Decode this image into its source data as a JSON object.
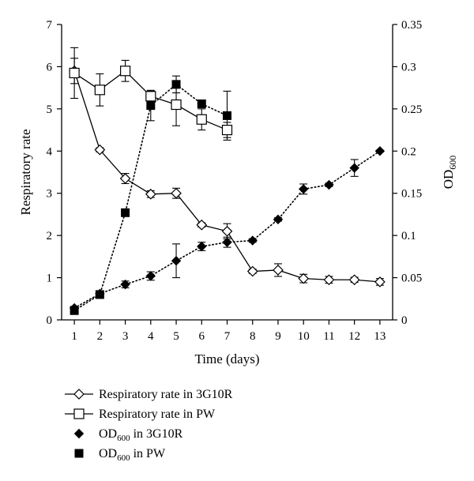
{
  "chart_data": {
    "type": "line",
    "xlabel": "Time (days)",
    "ylabel_left": "Respiratory rate",
    "ylabel_right": {
      "base": "OD",
      "sub": "600"
    },
    "x_ticks": [
      1,
      2,
      3,
      4,
      5,
      6,
      7,
      8,
      9,
      10,
      11,
      12,
      13
    ],
    "xlim": [
      0.5,
      13.5
    ],
    "ylim_left": [
      0,
      7
    ],
    "yticks_left": [
      0,
      1,
      2,
      3,
      4,
      5,
      6,
      7
    ],
    "ylim_right": [
      0,
      0.35
    ],
    "yticks_right": [
      "0",
      "0.05",
      "0.1",
      "0.15",
      "0.2",
      "0.25",
      "0.3",
      "0.35"
    ],
    "grid": false,
    "legend_position": "bottom",
    "series": [
      {
        "name": "Respiratory rate in 3G10R",
        "axis": "left",
        "marker": "open-diamond",
        "line": "solid",
        "x": [
          1,
          2,
          3,
          4,
          5,
          6,
          7,
          8,
          9,
          10,
          11,
          12,
          13
        ],
        "y": [
          5.9,
          4.03,
          3.35,
          2.98,
          3.0,
          2.25,
          2.1,
          1.15,
          1.18,
          0.98,
          0.95,
          0.95,
          0.9
        ],
        "err": [
          0.3,
          0.05,
          0.12,
          0.08,
          0.12,
          0.05,
          0.18,
          0.05,
          0.15,
          0.1,
          0.08,
          0.06,
          0.08
        ]
      },
      {
        "name": "Respiratory rate in PW",
        "axis": "left",
        "marker": "open-square",
        "line": "solid",
        "x": [
          1,
          2,
          3,
          4,
          5,
          6,
          7
        ],
        "y": [
          5.85,
          5.45,
          5.9,
          5.3,
          5.1,
          4.75,
          4.5
        ],
        "err": [
          0.6,
          0.38,
          0.25,
          0.12,
          0.5,
          0.25,
          0.18
        ]
      },
      {
        "name": "OD600 in 3G10R",
        "axis": "right",
        "marker": "filled-diamond",
        "line": "dotted",
        "x": [
          1,
          2,
          3,
          4,
          5,
          6,
          7,
          8,
          9,
          10,
          11,
          12,
          13
        ],
        "y": [
          0.014,
          0.031,
          0.042,
          0.052,
          0.07,
          0.087,
          0.092,
          0.094,
          0.119,
          0.155,
          0.16,
          0.18,
          0.2
        ],
        "err": [
          0.002,
          0.002,
          0.004,
          0.005,
          0.02,
          0.005,
          0.006,
          0.002,
          0.002,
          0.006,
          0.002,
          0.01,
          0.001
        ]
      },
      {
        "name": "OD600 in PW",
        "axis": "right",
        "marker": "filled-square",
        "line": "dotted",
        "x": [
          1,
          2,
          3,
          4,
          5,
          6,
          7
        ],
        "y": [
          0.011,
          0.03,
          0.127,
          0.254,
          0.279,
          0.256,
          0.242
        ],
        "err": [
          0.0,
          0.0,
          0.0,
          0.018,
          0.01,
          0.002,
          0.029
        ]
      }
    ],
    "legend": [
      {
        "label": "Respiratory rate in 3G10R",
        "sub": "",
        "tail": "",
        "marker": "open-diamond",
        "line": "solid"
      },
      {
        "label": "Respiratory rate in PW",
        "sub": "",
        "tail": "",
        "marker": "open-square",
        "line": "solid"
      },
      {
        "label": "OD",
        "sub": "600",
        "tail": " in 3G10R",
        "marker": "filled-diamond",
        "line": "none"
      },
      {
        "label": "OD",
        "sub": "600",
        "tail": " in PW",
        "marker": "filled-square",
        "line": "none"
      }
    ]
  }
}
